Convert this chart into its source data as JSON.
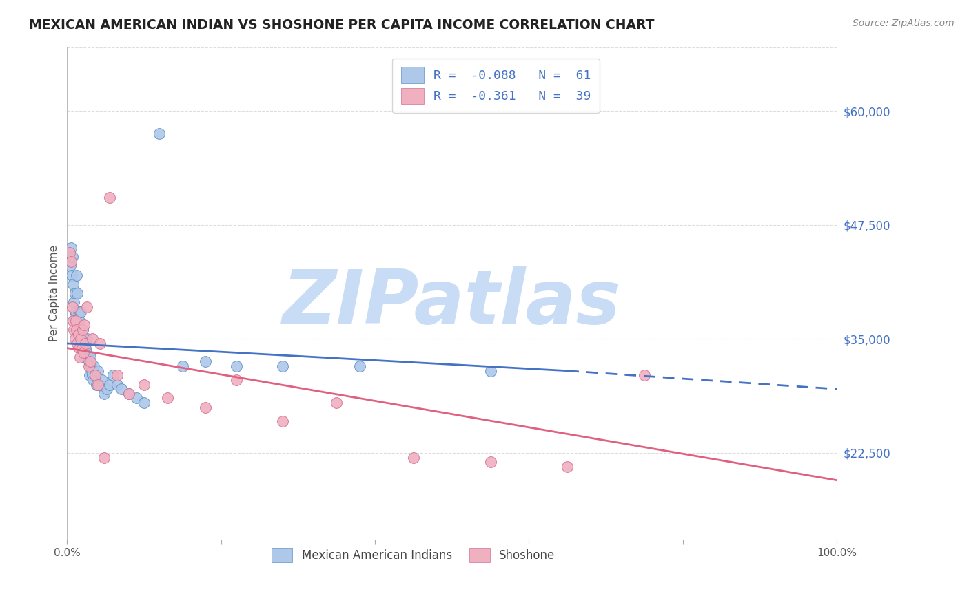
{
  "title": "MEXICAN AMERICAN INDIAN VS SHOSHONE PER CAPITA INCOME CORRELATION CHART",
  "source": "Source: ZipAtlas.com",
  "ylabel": "Per Capita Income",
  "xlim": [
    0,
    1.0
  ],
  "ylim": [
    13000,
    67000
  ],
  "xticks": [
    0.0,
    0.2,
    0.4,
    0.6,
    0.8,
    1.0
  ],
  "xticklabels": [
    "0.0%",
    "",
    "",
    "",
    "",
    "100.0%"
  ],
  "ytick_right_values": [
    22500,
    35000,
    47500,
    60000
  ],
  "ytick_right_labels": [
    "$22,500",
    "$35,000",
    "$47,500",
    "$60,000"
  ],
  "blue_color": "#adc8e8",
  "blue_edge_color": "#6090c8",
  "pink_color": "#f0b0c0",
  "pink_edge_color": "#d07090",
  "blue_line_color": "#4472c4",
  "pink_line_color": "#e06080",
  "blue_R": -0.088,
  "blue_N": 61,
  "pink_R": -0.361,
  "pink_N": 39,
  "legend_label_blue": "Mexican American Indians",
  "legend_label_pink": "Shoshone",
  "watermark": "ZIPatlas",
  "watermark_color": "#c8ddf5",
  "background_color": "#ffffff",
  "grid_color": "#dddddd",
  "blue_line_solid_end": 0.65,
  "blue_line_start": 0.0,
  "blue_line_end": 1.0,
  "pink_line_start": 0.0,
  "pink_line_end": 1.0,
  "blue_scatter_x": [
    0.002,
    0.004,
    0.005,
    0.006,
    0.007,
    0.008,
    0.009,
    0.01,
    0.01,
    0.011,
    0.012,
    0.013,
    0.014,
    0.015,
    0.015,
    0.016,
    0.016,
    0.017,
    0.017,
    0.018,
    0.018,
    0.019,
    0.02,
    0.02,
    0.021,
    0.021,
    0.022,
    0.023,
    0.024,
    0.025,
    0.026,
    0.027,
    0.028,
    0.029,
    0.03,
    0.031,
    0.032,
    0.033,
    0.034,
    0.035,
    0.036,
    0.038,
    0.04,
    0.042,
    0.045,
    0.048,
    0.052,
    0.055,
    0.06,
    0.065,
    0.07,
    0.08,
    0.09,
    0.1,
    0.12,
    0.15,
    0.18,
    0.22,
    0.28,
    0.38,
    0.55
  ],
  "blue_scatter_y": [
    44500,
    43000,
    45000,
    42000,
    44000,
    41000,
    39000,
    37500,
    40000,
    38000,
    42000,
    40000,
    36000,
    36500,
    38000,
    37000,
    35000,
    38000,
    36000,
    35500,
    38000,
    36000,
    34500,
    36000,
    35000,
    34000,
    33000,
    35000,
    34000,
    33500,
    35000,
    33000,
    32500,
    31000,
    33000,
    32000,
    31500,
    31000,
    30500,
    32000,
    31000,
    30000,
    31500,
    30000,
    30500,
    29000,
    29500,
    30000,
    31000,
    30000,
    29500,
    29000,
    28500,
    28000,
    57500,
    32000,
    32500,
    32000,
    32000,
    32000,
    31500
  ],
  "pink_scatter_x": [
    0.003,
    0.005,
    0.007,
    0.008,
    0.009,
    0.01,
    0.011,
    0.012,
    0.013,
    0.015,
    0.016,
    0.017,
    0.018,
    0.019,
    0.02,
    0.021,
    0.022,
    0.024,
    0.026,
    0.028,
    0.03,
    0.033,
    0.036,
    0.04,
    0.043,
    0.048,
    0.055,
    0.065,
    0.08,
    0.1,
    0.13,
    0.18,
    0.22,
    0.28,
    0.35,
    0.45,
    0.55,
    0.65,
    0.75
  ],
  "pink_scatter_y": [
    44500,
    43500,
    38500,
    37000,
    36000,
    35000,
    37000,
    36000,
    34500,
    35500,
    34000,
    33000,
    35000,
    34000,
    36000,
    33500,
    36500,
    34500,
    38500,
    32000,
    32500,
    35000,
    31000,
    30000,
    34500,
    22000,
    50500,
    31000,
    29000,
    30000,
    28500,
    27500,
    30500,
    26000,
    28000,
    22000,
    21500,
    21000,
    31000
  ]
}
